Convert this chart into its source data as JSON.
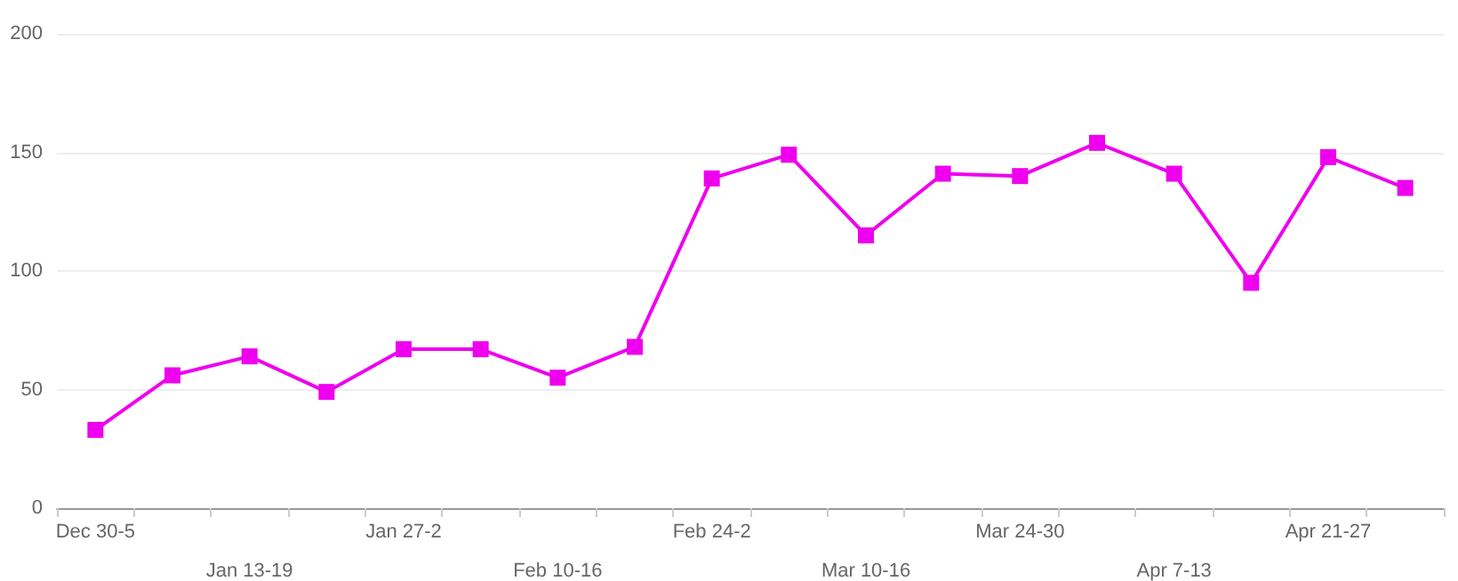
{
  "chart_data": {
    "type": "line",
    "categories": [
      "Dec 30-5",
      null,
      "Jan 13-19",
      null,
      "Jan 27-2",
      null,
      "Feb 10-16",
      null,
      "Feb 24-2",
      null,
      "Mar 10-16",
      null,
      "Mar 24-30",
      null,
      "Apr 7-13",
      null,
      "Apr 21-27",
      null
    ],
    "series": [
      {
        "color": "#ee00ee",
        "values": [
          33,
          56,
          64,
          49,
          67,
          67,
          55,
          68,
          139,
          149,
          115,
          141,
          140,
          154,
          141,
          95,
          148,
          135
        ]
      }
    ],
    "ylim": [
      0,
      200
    ],
    "yticks": [
      0,
      50,
      100,
      150,
      200
    ],
    "grid": "y",
    "marker": "square",
    "line_style": "solid"
  }
}
